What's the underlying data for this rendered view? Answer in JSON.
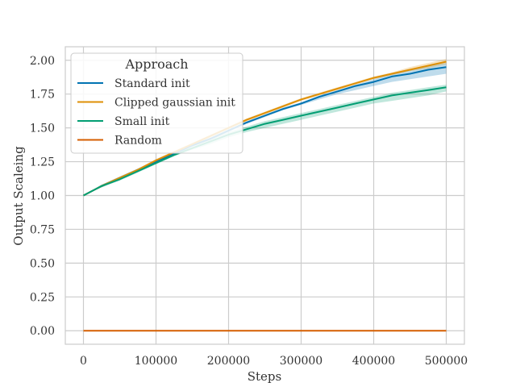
{
  "chart_data": {
    "type": "line",
    "title": "",
    "xlabel": "Steps",
    "ylabel": "Output Scaleing",
    "xlim": [
      -25000,
      525000
    ],
    "ylim": [
      -0.1,
      2.1
    ],
    "x_ticks": [
      0,
      100000,
      200000,
      300000,
      400000,
      500000
    ],
    "x_tick_labels": [
      "0",
      "100000",
      "200000",
      "300000",
      "400000",
      "500000"
    ],
    "y_ticks": [
      0.0,
      0.25,
      0.5,
      0.75,
      1.0,
      1.25,
      1.5,
      1.75,
      2.0
    ],
    "y_tick_labels": [
      "0.00",
      "0.25",
      "0.50",
      "0.75",
      "1.00",
      "1.25",
      "1.50",
      "1.75",
      "2.00"
    ],
    "grid": true,
    "legend": {
      "title": "Approach",
      "placement": "top-left"
    },
    "x": [
      0,
      25000,
      50000,
      75000,
      100000,
      125000,
      150000,
      175000,
      200000,
      225000,
      250000,
      275000,
      300000,
      325000,
      350000,
      375000,
      400000,
      425000,
      450000,
      475000,
      500000
    ],
    "series": [
      {
        "name": "Standard init",
        "color": "#0173b2",
        "values": [
          1.0,
          1.07,
          1.13,
          1.19,
          1.25,
          1.31,
          1.37,
          1.42,
          1.48,
          1.54,
          1.59,
          1.64,
          1.68,
          1.73,
          1.77,
          1.81,
          1.84,
          1.88,
          1.9,
          1.93,
          1.95
        ],
        "band_lower": [
          1.0,
          1.06,
          1.12,
          1.18,
          1.24,
          1.3,
          1.36,
          1.41,
          1.47,
          1.53,
          1.58,
          1.63,
          1.67,
          1.71,
          1.75,
          1.78,
          1.81,
          1.84,
          1.86,
          1.88,
          1.9
        ],
        "band_upper": [
          1.0,
          1.08,
          1.14,
          1.2,
          1.26,
          1.32,
          1.38,
          1.43,
          1.49,
          1.55,
          1.6,
          1.65,
          1.69,
          1.74,
          1.78,
          1.82,
          1.86,
          1.9,
          1.93,
          1.96,
          1.98
        ]
      },
      {
        "name": "Clipped gaussian init",
        "color": "#de8f05",
        "values": [
          1.0,
          1.07,
          1.13,
          1.19,
          1.26,
          1.32,
          1.38,
          1.44,
          1.5,
          1.56,
          1.61,
          1.66,
          1.71,
          1.75,
          1.79,
          1.83,
          1.87,
          1.9,
          1.93,
          1.96,
          1.99
        ],
        "band_lower": [
          1.0,
          1.06,
          1.12,
          1.18,
          1.25,
          1.31,
          1.37,
          1.43,
          1.49,
          1.55,
          1.6,
          1.65,
          1.7,
          1.74,
          1.78,
          1.82,
          1.86,
          1.89,
          1.92,
          1.94,
          1.97
        ],
        "band_upper": [
          1.0,
          1.08,
          1.14,
          1.2,
          1.27,
          1.33,
          1.39,
          1.45,
          1.51,
          1.57,
          1.62,
          1.67,
          1.72,
          1.76,
          1.8,
          1.84,
          1.88,
          1.91,
          1.95,
          1.98,
          2.01
        ]
      },
      {
        "name": "Small init",
        "color": "#029e73",
        "values": [
          1.0,
          1.07,
          1.12,
          1.18,
          1.24,
          1.3,
          1.35,
          1.4,
          1.45,
          1.49,
          1.53,
          1.56,
          1.59,
          1.62,
          1.65,
          1.68,
          1.71,
          1.74,
          1.76,
          1.78,
          1.8
        ],
        "band_lower": [
          1.0,
          1.06,
          1.11,
          1.17,
          1.23,
          1.29,
          1.34,
          1.38,
          1.43,
          1.47,
          1.5,
          1.53,
          1.56,
          1.59,
          1.62,
          1.65,
          1.68,
          1.7,
          1.72,
          1.74,
          1.77
        ],
        "band_upper": [
          1.0,
          1.08,
          1.13,
          1.19,
          1.25,
          1.31,
          1.36,
          1.42,
          1.47,
          1.51,
          1.55,
          1.58,
          1.61,
          1.64,
          1.67,
          1.7,
          1.73,
          1.76,
          1.78,
          1.8,
          1.82
        ]
      },
      {
        "name": "Random",
        "color": "#d55e00",
        "values": [
          0.0,
          0.0,
          0.0,
          0.0,
          0.0,
          0.0,
          0.0,
          0.0,
          0.0,
          0.0,
          0.0,
          0.0,
          0.0,
          0.0,
          0.0,
          0.0,
          0.0,
          0.0,
          0.0,
          0.0,
          0.0
        ]
      }
    ]
  }
}
